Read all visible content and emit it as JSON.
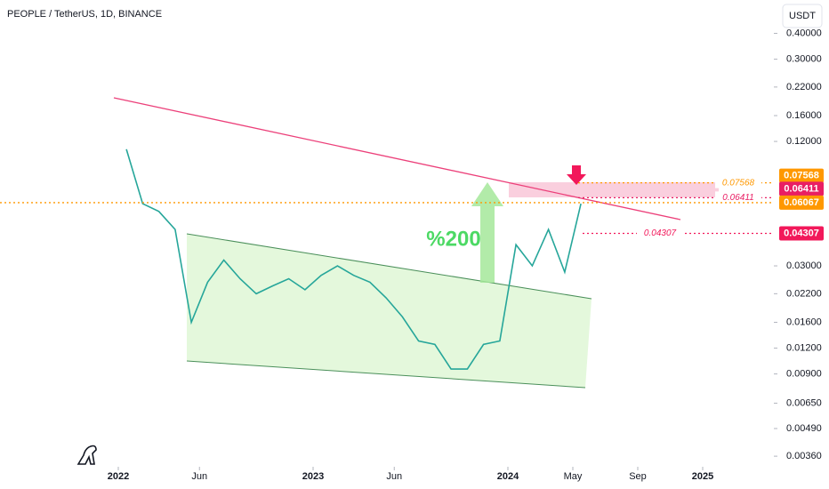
{
  "chart_data": {
    "type": "line",
    "title": "PEOPLE / TetherUS, 1D, BINANCE",
    "currency": "USDT",
    "annotation": "%200",
    "log_scale": true,
    "color": "#26a69a",
    "x": [
      "2022-01",
      "2022-02",
      "2022-03",
      "2022-04",
      "2022-05",
      "2022-06",
      "2022-07",
      "2022-08",
      "2022-09",
      "2022-10",
      "2022-11",
      "2022-12",
      "2023-01",
      "2023-02",
      "2023-03",
      "2023-04",
      "2023-05",
      "2023-06",
      "2023-07",
      "2023-08",
      "2023-09",
      "2023-10",
      "2023-11",
      "2023-12",
      "2024-01",
      "2024-02",
      "2024-03",
      "2024-04",
      "2024-05"
    ],
    "values": [
      0.11,
      0.06,
      0.055,
      0.045,
      0.016,
      0.025,
      0.032,
      0.026,
      0.022,
      0.024,
      0.026,
      0.023,
      0.027,
      0.03,
      0.027,
      0.025,
      0.021,
      0.017,
      0.013,
      0.0125,
      0.0095,
      0.0095,
      0.0125,
      0.013,
      0.038,
      0.03,
      0.045,
      0.028,
      0.06
    ],
    "xlim": [
      "2021-06",
      "2025-05"
    ],
    "xticks": [
      {
        "value": "2022-01",
        "label": "2022"
      },
      {
        "value": "2022-06",
        "label": "Jun"
      },
      {
        "value": "2023-01",
        "label": "2023"
      },
      {
        "value": "2023-06",
        "label": "Jun"
      },
      {
        "value": "2024-01",
        "label": "2024"
      },
      {
        "value": "2024-05",
        "label": "May"
      },
      {
        "value": "2024-09",
        "label": "Sep"
      },
      {
        "value": "2025-01",
        "label": "2025"
      }
    ],
    "ylim": [
      0.0032,
      0.58
    ],
    "yticks": [
      {
        "value": 0.4,
        "label": "0.40000"
      },
      {
        "value": 0.3,
        "label": "0.30000"
      },
      {
        "value": 0.22,
        "label": "0.22000"
      },
      {
        "value": 0.16,
        "label": "0.16000"
      },
      {
        "value": 0.12,
        "label": "0.12000"
      },
      {
        "value": 0.03,
        "label": "0.03000"
      },
      {
        "value": 0.022,
        "label": "0.02200"
      },
      {
        "value": 0.016,
        "label": "0.01600"
      },
      {
        "value": 0.012,
        "label": "0.01200"
      },
      {
        "value": 0.009,
        "label": "0.00900"
      },
      {
        "value": 0.0065,
        "label": "0.00650"
      },
      {
        "value": 0.0049,
        "label": "0.00490"
      },
      {
        "value": 0.0036,
        "label": "0.00360"
      }
    ],
    "price_levels": [
      {
        "value": 0.07568,
        "color": "#ff9800"
      },
      {
        "value": 0.06411,
        "color": "#e91e63"
      },
      {
        "value": 0.06067,
        "color": "#ff9800"
      },
      {
        "value": 0.04307,
        "color": "#f2185a"
      }
    ]
  }
}
